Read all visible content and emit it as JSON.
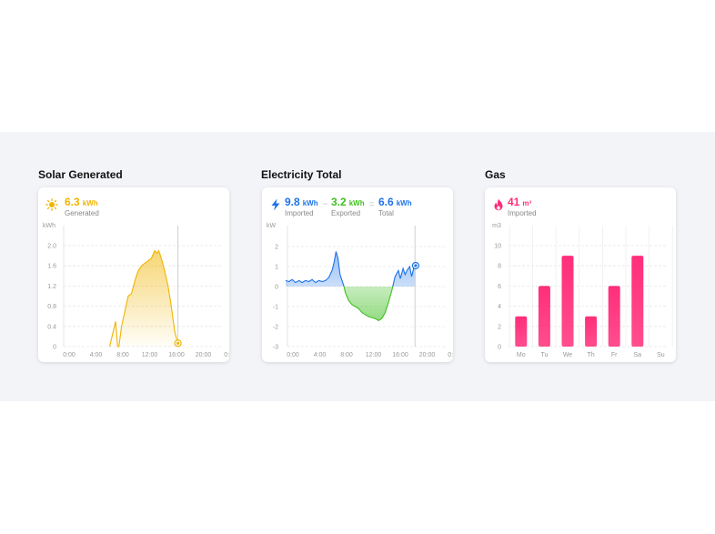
{
  "colors": {
    "solar": "#f0b400",
    "import": "#1e73e8",
    "export": "#3fbf1f",
    "gas": "#ff2e7a"
  },
  "solar": {
    "title": "Solar Generated",
    "icon": "sun-icon",
    "value": "6.3",
    "unit": "kWh",
    "label": "Generated",
    "chart_data": {
      "type": "area",
      "ylabel": "kWh",
      "ylim": [
        0,
        2.4
      ],
      "yticks": [
        "0",
        "0.4",
        "0.8",
        "1.2",
        "1.6",
        "2.0"
      ],
      "xticks": [
        "0:00",
        "4:00",
        "8:00",
        "12:00",
        "16:00",
        "20:00",
        "0:00"
      ],
      "current_time": "17:30",
      "x_hours": [
        7.2,
        8.1,
        8.4,
        8.6,
        9.0,
        9.5,
        10.0,
        10.5,
        11.0,
        11.5,
        12.0,
        12.5,
        13.0,
        13.5,
        14.0,
        14.3,
        14.6,
        15.0,
        15.5,
        16.0,
        16.5,
        17.0,
        17.5
      ],
      "values": [
        0.0,
        0.5,
        0.0,
        0.0,
        0.4,
        0.7,
        1.0,
        1.05,
        1.3,
        1.5,
        1.6,
        1.65,
        1.7,
        1.75,
        1.9,
        1.85,
        1.9,
        1.75,
        1.5,
        1.2,
        0.8,
        0.3,
        0.05
      ]
    }
  },
  "electricity": {
    "title": "Electricity Total",
    "icon": "lightning-icon",
    "imported": {
      "value": "9.8",
      "unit": "kWh",
      "label": "Imported"
    },
    "exported": {
      "value": "3.2",
      "unit": "kWh",
      "label": "Exported"
    },
    "total": {
      "value": "6.6",
      "unit": "kWh",
      "label": "Total"
    },
    "sep1": "−",
    "sep2": "=",
    "chart_data": {
      "type": "area",
      "ylabel": "kW",
      "ylim": [
        -3,
        2.5
      ],
      "yticks": [
        "2",
        "1",
        "0",
        "-1",
        "-2",
        "-3"
      ],
      "xticks": [
        "0:00",
        "4:00",
        "8:00",
        "12:00",
        "16:00",
        "20:00",
        "0:00"
      ],
      "current_time": "19:30",
      "x_hours": [
        0.0,
        0.5,
        1.0,
        1.5,
        2.0,
        2.5,
        3.0,
        3.5,
        4.0,
        4.5,
        5.0,
        5.5,
        6.0,
        6.5,
        7.0,
        7.3,
        7.6,
        7.9,
        8.2,
        8.5,
        8.8,
        9.0,
        9.5,
        10.0,
        10.5,
        11.0,
        11.5,
        12.0,
        12.5,
        13.0,
        13.5,
        14.0,
        14.5,
        15.0,
        15.5,
        16.0,
        16.5,
        17.0,
        17.3,
        17.7,
        18.0,
        18.3,
        18.7,
        19.0,
        19.3,
        19.6
      ],
      "values": [
        0.3,
        0.25,
        0.35,
        0.2,
        0.3,
        0.2,
        0.3,
        0.25,
        0.35,
        0.2,
        0.3,
        0.25,
        0.3,
        0.45,
        0.8,
        1.2,
        1.75,
        1.4,
        0.6,
        0.3,
        0.0,
        -0.3,
        -0.7,
        -0.9,
        -1.0,
        -1.1,
        -1.3,
        -1.4,
        -1.5,
        -1.55,
        -1.6,
        -1.7,
        -1.6,
        -1.3,
        -0.8,
        -0.2,
        0.5,
        0.8,
        0.4,
        0.9,
        0.6,
        0.8,
        1.0,
        0.5,
        0.9,
        1.0
      ]
    }
  },
  "gas": {
    "title": "Gas",
    "icon": "flame-icon",
    "value": "41",
    "unit": "m³",
    "label": "Imported",
    "chart_data": {
      "type": "bar",
      "ylabel": "m3",
      "ylim": [
        0,
        10
      ],
      "yticks": [
        "10",
        "8",
        "6",
        "4",
        "2",
        "0"
      ],
      "categories": [
        "Mo",
        "Tu",
        "We",
        "Th",
        "Fr",
        "Sa",
        "Su"
      ],
      "values": [
        3,
        6,
        9,
        3,
        6,
        9,
        0
      ]
    }
  }
}
